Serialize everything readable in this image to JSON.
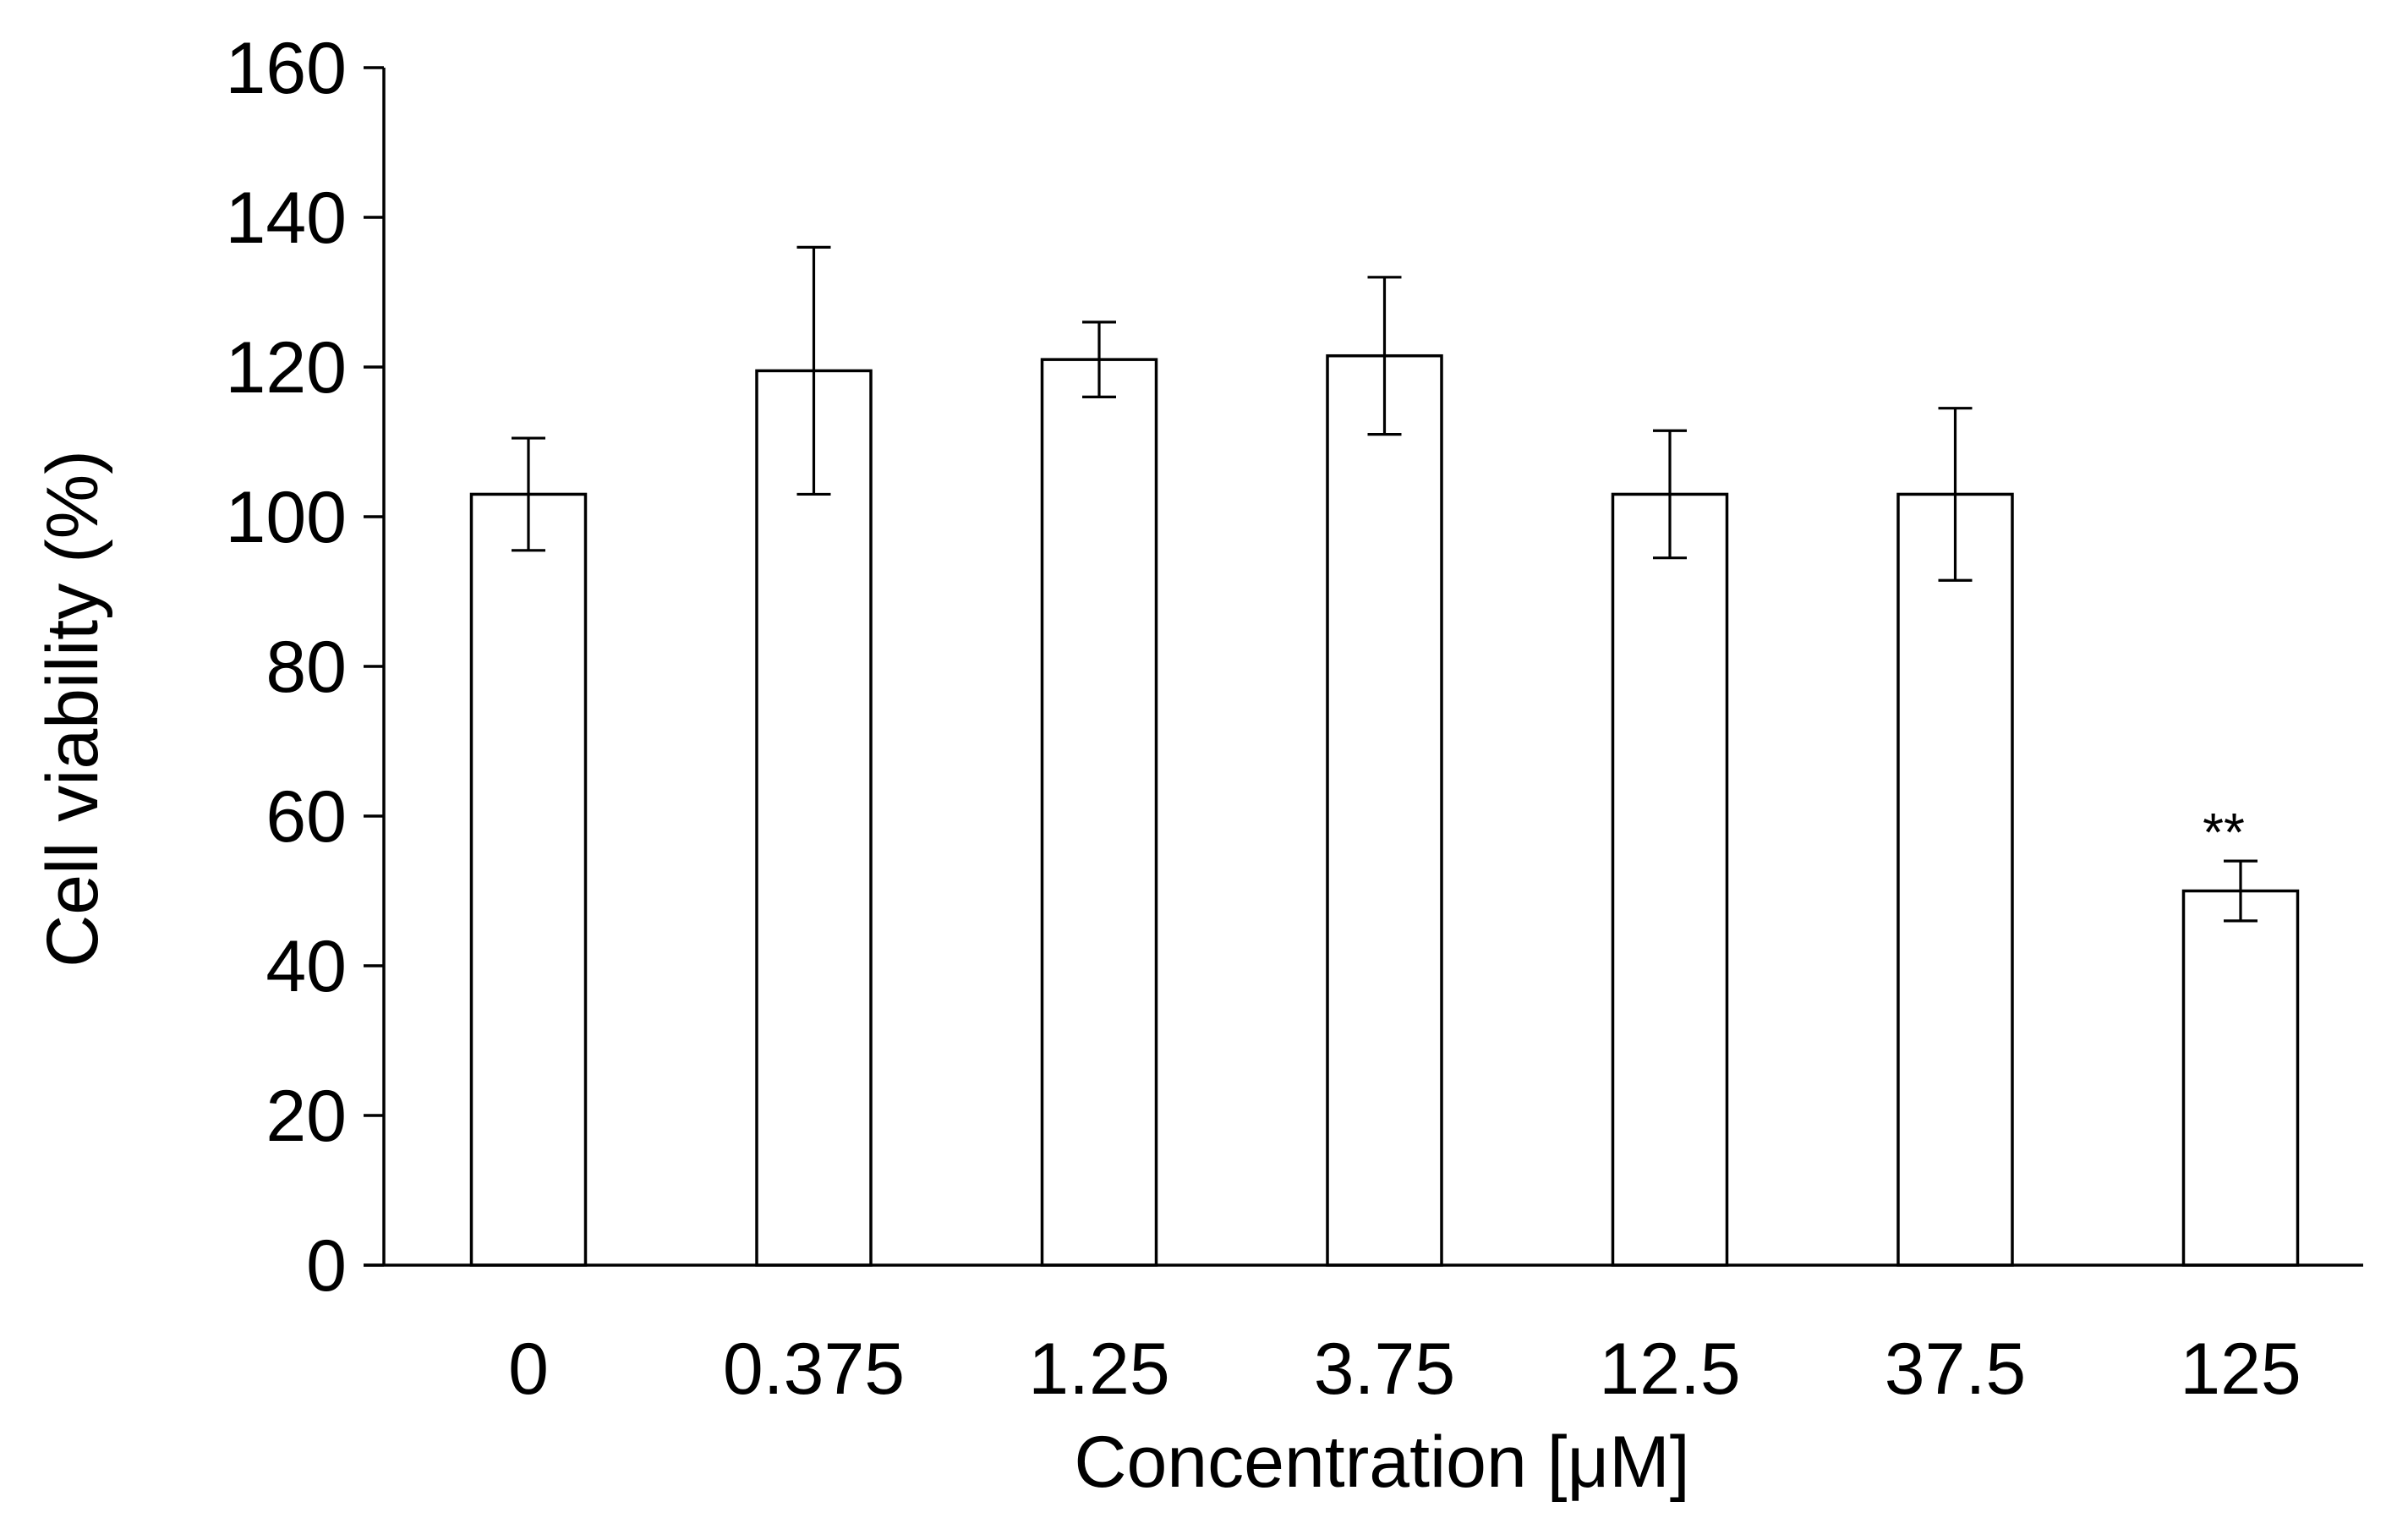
{
  "chart_data": {
    "type": "bar",
    "title": "",
    "xlabel": "Concentration [μM]",
    "ylabel": "Cell viability (%)",
    "ylim": [
      0,
      160
    ],
    "yticks": [
      "0",
      "20",
      "40",
      "60",
      "80",
      "100",
      "120",
      "140",
      "160"
    ],
    "grid": false,
    "legend": "none",
    "bar_fill": "#ffffff",
    "bar_stroke": "#000000",
    "categories": [
      "0",
      "0.375",
      "1.25",
      "3.75",
      "12.5",
      "37.5",
      "125"
    ],
    "values": [
      103,
      119.5,
      121,
      121.5,
      103,
      103,
      50
    ],
    "error": [
      7.5,
      16.5,
      5,
      10.5,
      8.5,
      11.5,
      4
    ],
    "annotations": [
      {
        "category": "125",
        "text": "**"
      }
    ]
  }
}
